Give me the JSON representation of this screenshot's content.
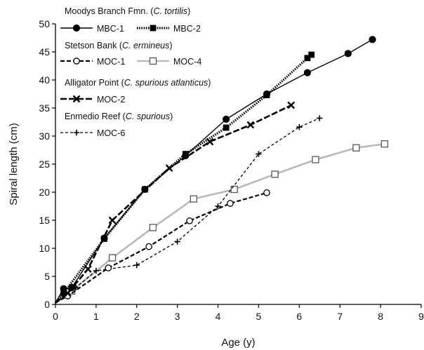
{
  "chart_data": {
    "type": "line",
    "xlabel": "Age (y)",
    "ylabel": "Spiral length (cm)",
    "xlim": [
      0,
      9
    ],
    "ylim": [
      0,
      50
    ],
    "xticks": [
      0,
      1,
      2,
      3,
      4,
      5,
      6,
      7,
      8,
      9
    ],
    "yticks": [
      0,
      5,
      10,
      15,
      20,
      25,
      30,
      35,
      40,
      45,
      50
    ],
    "grid": false,
    "legend_position": "top-left",
    "legend_groups": [
      {
        "site": "Moodys Branch Fmn. (",
        "species": "C. tortilis",
        "close": ")",
        "series": [
          "MBC-1",
          "MBC-2"
        ]
      },
      {
        "site": "Stetson Bank (",
        "species": "C. ermineus",
        "close": ")",
        "series": [
          "MOC-1",
          "MOC-4"
        ]
      },
      {
        "site": "Alligator Point (",
        "species": "C. spurious atlanticus",
        "close": ")",
        "series": [
          "MOC-2"
        ]
      },
      {
        "site": "Enmedio Reef  (",
        "species": "C. spurious",
        "close": ")",
        "series": [
          "MOC-6"
        ]
      }
    ],
    "series": [
      {
        "name": "MBC-1",
        "color": "#000000",
        "line": "solid",
        "marker": "filled-circle",
        "x": [
          0,
          0.2,
          0.4,
          1.2,
          2.2,
          3.2,
          4.2,
          5.2,
          6.2,
          7.2,
          7.8
        ],
        "y": [
          0.3,
          2.8,
          3.0,
          11.8,
          20.5,
          26.5,
          33.0,
          37.5,
          41.3,
          44.7,
          47.2
        ]
      },
      {
        "name": "MBC-2",
        "color": "#000000",
        "line": "dotted",
        "marker": "filled-square",
        "x": [
          0,
          0.2,
          1.2,
          2.2,
          3.2,
          4.2,
          5.2,
          6.2,
          6.3
        ],
        "y": [
          0.3,
          2.0,
          11.7,
          20.5,
          26.8,
          31.5,
          37.3,
          43.9,
          44.5
        ]
      },
      {
        "name": "MOC-1",
        "color": "#000000",
        "line": "dashed",
        "marker": "open-circle",
        "x": [
          0,
          0.3,
          1.3,
          2.3,
          3.3,
          4.3,
          5.2
        ],
        "y": [
          0.3,
          1.5,
          6.5,
          10.3,
          14.9,
          18.0,
          19.9
        ]
      },
      {
        "name": "MOC-4",
        "color": "#b8b8b8",
        "line": "solid",
        "marker": "open-square",
        "x": [
          0,
          0.4,
          1.4,
          2.4,
          3.4,
          4.4,
          5.4,
          6.4,
          7.4,
          8.1
        ],
        "y": [
          0.3,
          2.4,
          8.3,
          13.7,
          18.8,
          20.5,
          23.2,
          25.8,
          27.9,
          28.6
        ]
      },
      {
        "name": "MOC-2",
        "color": "#000000",
        "line": "long-dash",
        "marker": "cross-x",
        "x": [
          0,
          0.3,
          0.8,
          1.4,
          2.8,
          3.8,
          4.8,
          5.8
        ],
        "y": [
          0.3,
          2.0,
          6.3,
          15.0,
          24.3,
          29.0,
          32.0,
          35.5
        ]
      },
      {
        "name": "MOC-6",
        "color": "#000000",
        "line": "dashed-thin",
        "marker": "plus",
        "x": [
          0,
          0.5,
          1.0,
          2.0,
          3.0,
          4.0,
          5.0,
          6.0,
          6.5
        ],
        "y": [
          0.3,
          3.0,
          6.0,
          7.0,
          11.2,
          17.5,
          26.8,
          31.6,
          33.2
        ]
      }
    ]
  }
}
